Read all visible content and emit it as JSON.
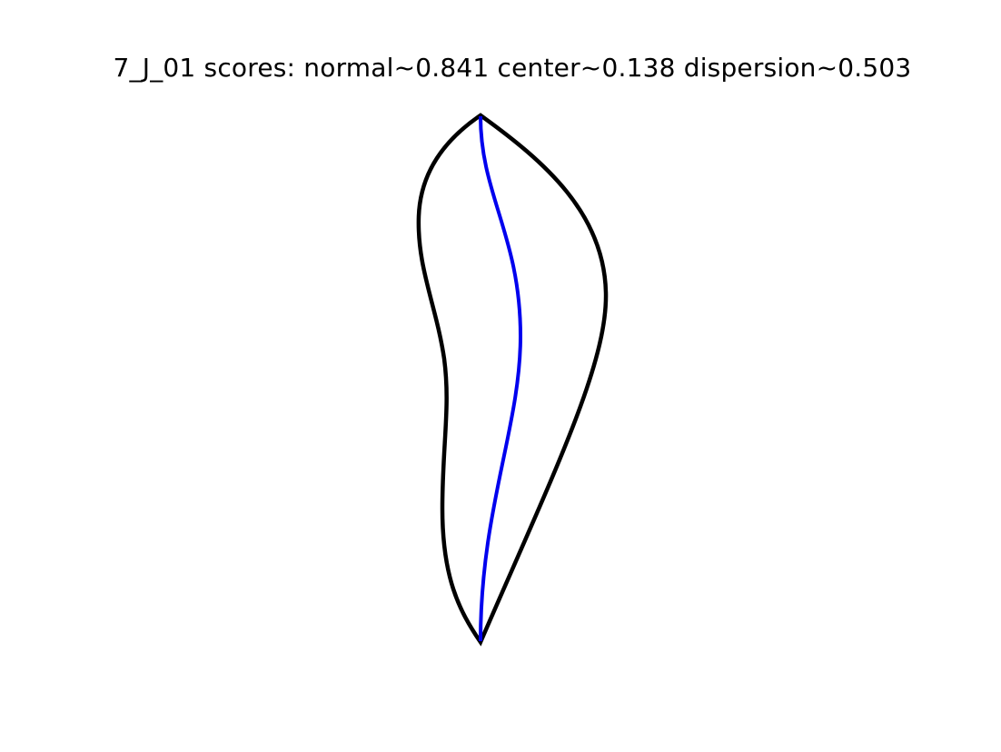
{
  "title": "7_J_01 scores: normal~0.841 center~0.138 dispersion~0.503",
  "colors": {
    "background": "#ffffff",
    "outline": "#000000",
    "centerline": "#0000ee"
  }
}
